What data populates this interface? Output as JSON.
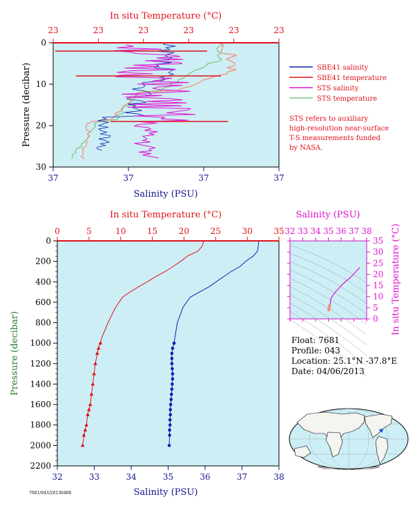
{
  "colors": {
    "plot_bg": "#cdeef5",
    "red": "#e0101a",
    "blue": "#0a20b0",
    "magenta": "#e010d0",
    "green": "#80c880",
    "salmon": "#f0907c",
    "green_text": "#2b7a30",
    "dark_blue_text": "#10108a"
  },
  "top_panel": {
    "title_top": "In situ Temperature (°C)",
    "ylabel": "Pressure (decibar)",
    "xlabel_bottom": "Salinity (PSU)",
    "top_tick_labels": [
      "23",
      "23",
      "23",
      "23",
      "23",
      "23"
    ],
    "bottom_tick_labels": [
      "37",
      "37",
      "37",
      "37"
    ],
    "y_tick_labels": [
      "0",
      "10",
      "20",
      "30"
    ],
    "legend": [
      "SBE41 salinity",
      "SBE41 temperature",
      "STS salinity",
      "STS temperature"
    ],
    "note": [
      "STS refers to auxiliary",
      "high-resolution near-surface",
      "T-S measurements funded",
      "by NASA."
    ]
  },
  "main_panel": {
    "title_top": "In situ Temperature (°C)",
    "ylabel": "Pressure (decibar)",
    "xlabel_bottom": "Salinity (PSU)",
    "top_tick_labels": [
      "0",
      "5",
      "10",
      "15",
      "20",
      "25",
      "30",
      "35"
    ],
    "bottom_tick_labels": [
      "32",
      "33",
      "34",
      "35",
      "36",
      "37",
      "38"
    ],
    "y_tick_labels": [
      "0",
      "200",
      "400",
      "600",
      "800",
      "1000",
      "1200",
      "1400",
      "1600",
      "1800",
      "2000",
      "2200"
    ],
    "footer_code": "7681/043/20130406"
  },
  "ts_panel": {
    "title_top": "Salinity (PSU)",
    "ylabel_right": "In situ Temperature (°C)",
    "top_tick_labels": [
      "32",
      "33",
      "34",
      "35",
      "36",
      "37",
      "38"
    ],
    "right_tick_labels": [
      "0",
      "5",
      "10",
      "15",
      "20",
      "25",
      "30",
      "35"
    ]
  },
  "info": {
    "float": "Float:  7681",
    "profile": "Profile:  043",
    "location": "Location:  25.1°N  -37.8°E",
    "date": "Date:  04/06/2013"
  },
  "chart_data": [
    {
      "type": "line",
      "title": "",
      "xlabel": "Salinity (PSU)",
      "x2label": "In situ Temperature (°C)",
      "ylabel": "Pressure (decibar)",
      "xlim": [
        32,
        38
      ],
      "x2lim": [
        0,
        35
      ],
      "ylim": [
        2200,
        0
      ],
      "series": [
        {
          "name": "Salinity",
          "axis": "salinity",
          "x": [
            37.45,
            37.44,
            37.42,
            37.3,
            37.1,
            36.95,
            36.7,
            36.5,
            36.3,
            36.1,
            35.85,
            35.6,
            35.4,
            35.25,
            35.18,
            35.16,
            35.12,
            35.1,
            35.1,
            35.1,
            35.11,
            35.12,
            35.12,
            35.11,
            35.1,
            35.09,
            35.08,
            35.07,
            35.06,
            35.06,
            35.05,
            35.05,
            35.04,
            35.04,
            35.03
          ],
          "y": [
            0,
            50,
            100,
            150,
            200,
            250,
            300,
            350,
            400,
            450,
            500,
            550,
            650,
            800,
            950,
            1000,
            1050,
            1100,
            1150,
            1200,
            1250,
            1300,
            1350,
            1400,
            1450,
            1500,
            1550,
            1600,
            1650,
            1700,
            1750,
            1800,
            1850,
            1900,
            2000
          ]
        },
        {
          "name": "In situ Temperature",
          "axis": "temperature",
          "x": [
            23.1,
            22.9,
            22.2,
            20.5,
            19.5,
            18.3,
            17.0,
            15.5,
            14.2,
            12.8,
            11.5,
            10.3,
            9.2,
            8.0,
            7.0,
            6.8,
            6.5,
            6.3,
            6.0,
            5.8,
            5.6,
            5.4,
            5.2,
            5.0,
            4.8,
            4.6,
            4.4,
            4.2,
            4.0
          ],
          "y": [
            0,
            50,
            100,
            150,
            200,
            250,
            300,
            350,
            400,
            450,
            500,
            550,
            650,
            800,
            950,
            1000,
            1050,
            1100,
            1200,
            1300,
            1400,
            1500,
            1600,
            1650,
            1700,
            1800,
            1850,
            1900,
            2000
          ]
        }
      ]
    },
    {
      "type": "line",
      "title": "",
      "xlabel": "Salinity (PSU)",
      "ylabel": "In situ Temperature (°C)",
      "xlim": [
        32,
        38
      ],
      "ylim": [
        0,
        35
      ],
      "series": [
        {
          "name": "T-S",
          "x": [
            37.45,
            37.2,
            36.9,
            36.5,
            36.1,
            35.7,
            35.4,
            35.2,
            35.15,
            35.1,
            35.08,
            35.05,
            35.04
          ],
          "y": [
            23,
            21.5,
            19.5,
            17.5,
            15.5,
            13,
            11,
            9,
            7,
            6,
            5,
            4.5,
            4
          ]
        }
      ]
    }
  ]
}
